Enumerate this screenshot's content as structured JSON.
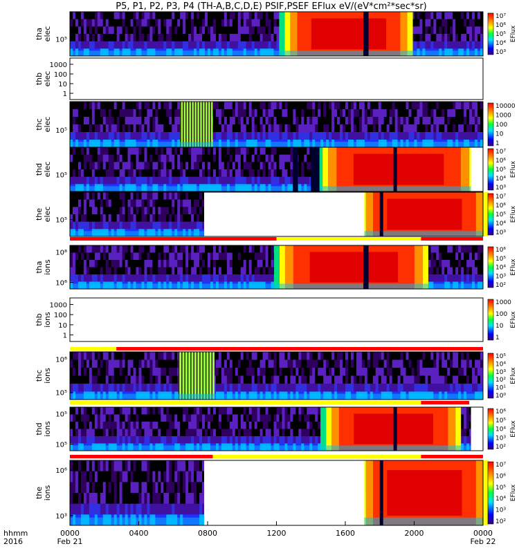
{
  "title": "P5, P1, P2, P3, P4 (TH-A,B,C,D,E) PSIF,PSEF EFlux eV/(eV*cm²*sec*sr)",
  "x_axis": {
    "row_label": "hhmm",
    "year_label": "2016",
    "ticks": [
      "0000",
      "0400",
      "0800",
      "1200",
      "1600",
      "2000",
      "0000"
    ],
    "date_labels": [
      "Feb 21",
      "Feb 22"
    ]
  },
  "chart_data": {
    "type": "heatmap",
    "x_range_hours": [
      0,
      24
    ],
    "panels": [
      {
        "id": "tha-elec",
        "ylabel": [
          "tha",
          "elec"
        ],
        "yticks": [
          "10⁵"
        ],
        "cbar_label": "EFlux",
        "cbar_ticks": [
          "10⁷",
          "10⁶",
          "10⁵",
          "10⁴",
          "10³"
        ],
        "empty": false,
        "description": "high flux (red) 1300-1940, dark gap ~1715",
        "hot": [
          [
            12.8,
            19.6
          ]
        ],
        "gaps": [
          [
            17.05,
            17.35
          ]
        ],
        "white": []
      },
      {
        "id": "thb-elec",
        "ylabel": [
          "thb",
          "elec"
        ],
        "yticks": [
          "1000",
          "100",
          "10",
          "1"
        ],
        "cbar_label": "",
        "cbar_ticks": [],
        "empty": true
      },
      {
        "id": "thc-elec",
        "ylabel": [
          "thc",
          "elec"
        ],
        "yticks": [
          "10⁵"
        ],
        "cbar_label": "",
        "cbar_ticks": [
          "10000",
          "1000",
          "100",
          "10",
          "1"
        ],
        "empty": false,
        "hot": [],
        "green": [
          [
            6.4,
            8.3
          ]
        ],
        "gaps": [],
        "white": []
      },
      {
        "id": "thd-elec",
        "ylabel": [
          "thd",
          "elec"
        ],
        "yticks": [
          "10⁵"
        ],
        "cbar_label": "EFlux",
        "cbar_ticks": [
          "10⁷",
          "10⁶",
          "10⁵",
          "10⁴",
          "10³"
        ],
        "empty": false,
        "hot": [
          [
            15.0,
            23.2
          ]
        ],
        "gaps": [
          [
            12.95,
            13.25
          ],
          [
            14.0,
            14.5
          ],
          [
            18.8,
            19.0
          ]
        ],
        "white": [
          [
            23.3,
            24.0
          ]
        ]
      },
      {
        "id": "the-elec",
        "ylabel": [
          "the",
          "elec"
        ],
        "yticks": [
          "10⁵"
        ],
        "cbar_label": "EFlux",
        "cbar_ticks": [
          "10⁷",
          "10⁶",
          "10⁵",
          "10⁴",
          "10³"
        ],
        "empty": false,
        "hot": [
          [
            17.2,
            24.0
          ]
        ],
        "gaps": [
          [
            18.0,
            18.2
          ]
        ],
        "white": [
          [
            7.8,
            17.1
          ]
        ]
      },
      {
        "id": "tha-ions",
        "ylabel": [
          "tha",
          "ions"
        ],
        "yticks": [
          "10⁸",
          "10⁶"
        ],
        "cbar_label": "EFlux",
        "cbar_ticks": [
          "10⁶",
          "10⁵",
          "10⁴",
          "10³",
          "10²"
        ],
        "empty": false,
        "hot": [
          [
            12.5,
            20.5
          ]
        ],
        "gaps": [
          [
            17.05,
            17.35
          ]
        ],
        "white": []
      },
      {
        "id": "thb-ions",
        "ylabel": [
          "thb",
          "ions"
        ],
        "yticks": [
          "1000",
          "100",
          "10",
          "1"
        ],
        "cbar_label": "EFlux",
        "cbar_ticks": [
          "1000",
          "100",
          "10",
          "1"
        ],
        "empty": true
      },
      {
        "id": "thc-ions",
        "ylabel": [
          "thc",
          "ions"
        ],
        "yticks": [
          "10⁶",
          "10⁵"
        ],
        "cbar_label": "EFlux",
        "cbar_ticks": [
          "10⁵",
          "10⁴",
          "10³",
          "10²",
          "10¹",
          "10⁰"
        ],
        "empty": false,
        "hot": [],
        "green": [
          [
            6.3,
            8.4
          ]
        ],
        "gaps": [],
        "white": []
      },
      {
        "id": "thd-ions",
        "ylabel": [
          "thd",
          "ions"
        ],
        "yticks": [
          "10⁵",
          "10⁵"
        ],
        "cbar_label": "EFlux",
        "cbar_ticks": [
          "10⁶",
          "10⁵",
          "10⁴",
          "10³",
          "10²"
        ],
        "empty": false,
        "hot": [
          [
            15.2,
            22.4
          ]
        ],
        "gaps": [
          [
            18.8,
            19.0
          ]
        ],
        "white": [
          [
            23.3,
            24.0
          ]
        ]
      },
      {
        "id": "the-ions",
        "ylabel": [
          "the",
          "ions"
        ],
        "yticks": [
          "10⁶",
          "10³"
        ],
        "cbar_label": "EFlux",
        "cbar_ticks": [
          "10⁷",
          "10⁶",
          "10⁵",
          "10⁴",
          "10³",
          "10²"
        ],
        "empty": false,
        "hot": [
          [
            17.2,
            24.0
          ]
        ],
        "gaps": [
          [
            18.0,
            18.2
          ]
        ],
        "white": [
          [
            7.8,
            17.1
          ]
        ]
      }
    ]
  },
  "colors": {
    "bar_red": "#ff0000",
    "bar_yellow": "#ffff00"
  }
}
